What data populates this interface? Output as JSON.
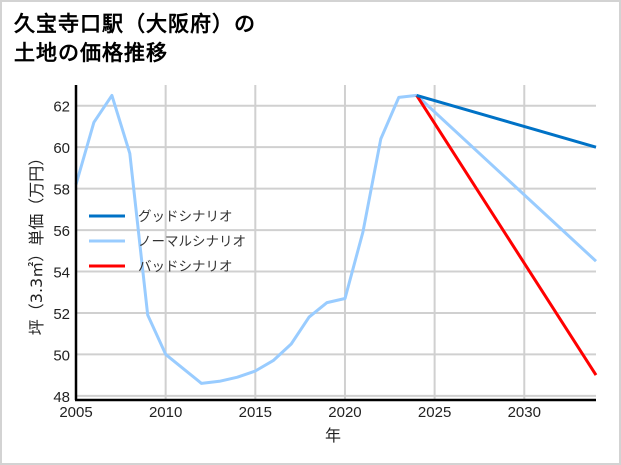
{
  "title_line1": "久宝寺口駅（大阪府）の",
  "title_line2": "土地の価格推移",
  "chart_data": {
    "type": "line",
    "title": "久宝寺口駅（大阪府）の土地の価格推移",
    "xlabel": "年",
    "ylabel": "坪（3.3㎡）単価（万円）",
    "xlim": [
      2005,
      2034
    ],
    "ylim": [
      48,
      63
    ],
    "x_ticks": [
      2005,
      2010,
      2015,
      2020,
      2025,
      2030
    ],
    "y_ticks": [
      48,
      50,
      52,
      54,
      56,
      58,
      60,
      62
    ],
    "grid": true,
    "legend_position": "left-middle",
    "series": [
      {
        "name": "グッドシナリオ",
        "color": "#0072c6",
        "x": [
          2024,
          2034
        ],
        "values": [
          62.5,
          60.0
        ]
      },
      {
        "name": "ノーマルシナリオ",
        "color": "#99ccff",
        "x": [
          2005,
          2006,
          2007,
          2008,
          2009,
          2010,
          2011,
          2012,
          2013,
          2014,
          2015,
          2016,
          2017,
          2018,
          2019,
          2020,
          2021,
          2022,
          2023,
          2024,
          2034
        ],
        "values": [
          58.2,
          61.2,
          62.5,
          59.7,
          51.9,
          50.0,
          49.3,
          48.6,
          48.7,
          48.9,
          49.2,
          49.7,
          50.5,
          51.8,
          52.5,
          52.7,
          55.9,
          60.4,
          62.4,
          62.5,
          54.5
        ]
      },
      {
        "name": "バッドシナリオ",
        "color": "#ff0000",
        "x": [
          2024,
          2034
        ],
        "values": [
          62.5,
          49.0
        ]
      }
    ]
  }
}
